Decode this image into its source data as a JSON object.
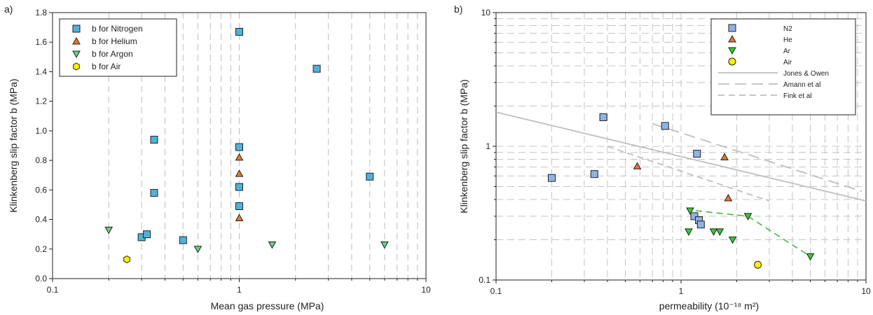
{
  "chart_data": [
    {
      "panel_label": "a)",
      "type": "scatter",
      "xlabel": "Mean gas pressure (MPa)",
      "ylabel": "Klinkenberg slip factor b (MPa)",
      "xscale": "log",
      "xlim": [
        0.1,
        10
      ],
      "ylim": [
        0,
        1.8
      ],
      "xticks": [
        "0.1",
        "1",
        "10"
      ],
      "yticks": [
        "0.0",
        "0.2",
        "0.4",
        "0.6",
        "0.8",
        "1.0",
        "1.2",
        "1.4",
        "1.6",
        "1.8"
      ],
      "grid": "vertical dashed",
      "legend_position": "top-left",
      "series": [
        {
          "name": "b for Nitrogen",
          "marker": "square",
          "color": "#4fb3d9",
          "points": [
            [
              0.3,
              0.28
            ],
            [
              0.32,
              0.3
            ],
            [
              0.35,
              0.58
            ],
            [
              0.35,
              0.94
            ],
            [
              0.5,
              0.26
            ],
            [
              1.0,
              1.67
            ],
            [
              1.0,
              0.89
            ],
            [
              1.0,
              0.62
            ],
            [
              1.0,
              0.49
            ],
            [
              2.6,
              1.42
            ],
            [
              5.0,
              0.69
            ]
          ]
        },
        {
          "name": "b for Helium",
          "marker": "triangle-up",
          "color": "#e8762c",
          "points": [
            [
              1.0,
              0.82
            ],
            [
              1.0,
              0.71
            ],
            [
              1.0,
              0.41
            ]
          ]
        },
        {
          "name": "b for Argon",
          "marker": "triangle-down",
          "color": "#66cc88",
          "points": [
            [
              0.2,
              0.33
            ],
            [
              0.6,
              0.2
            ],
            [
              1.5,
              0.23
            ],
            [
              6.0,
              0.23
            ]
          ]
        },
        {
          "name": "b for Air",
          "marker": "hexagon",
          "color": "#ffee00",
          "points": [
            [
              0.25,
              0.13
            ]
          ]
        }
      ]
    },
    {
      "panel_label": "b)",
      "type": "scatter",
      "xlabel": "permeability (10⁻¹⁸ m²)",
      "ylabel": "Klinkenberg slip factor b (MPa)",
      "xscale": "log",
      "yscale": "log",
      "xlim": [
        0.1,
        10
      ],
      "ylim": [
        0.1,
        10
      ],
      "xticks": [
        "0.1",
        "1",
        "10"
      ],
      "yticks": [
        "0.1",
        "1",
        "10"
      ],
      "grid": "dashed both axes",
      "legend_position": "top-right",
      "series": [
        {
          "name": "N2",
          "marker": "square",
          "color": "#8fb4e3",
          "points": [
            [
              0.2,
              0.58
            ],
            [
              0.34,
              0.62
            ],
            [
              0.38,
              1.65
            ],
            [
              0.82,
              1.42
            ],
            [
              1.22,
              0.88
            ],
            [
              1.18,
              0.3
            ],
            [
              1.25,
              0.28
            ],
            [
              1.28,
              0.26
            ]
          ]
        },
        {
          "name": "He",
          "marker": "triangle-up",
          "color": "#e8762c",
          "points": [
            [
              0.58,
              0.71
            ],
            [
              1.72,
              0.83
            ],
            [
              1.8,
              0.41
            ]
          ]
        },
        {
          "name": "Ar",
          "marker": "triangle-down",
          "color": "#33cc33",
          "points": [
            [
              1.12,
              0.33
            ],
            [
              1.1,
              0.23
            ],
            [
              1.5,
              0.23
            ],
            [
              1.62,
              0.23
            ],
            [
              1.9,
              0.2
            ],
            [
              2.3,
              0.3
            ],
            [
              5.0,
              0.15
            ]
          ]
        },
        {
          "name": "Air",
          "marker": "circle",
          "color": "#ffee00",
          "points": [
            [
              2.6,
              0.13
            ]
          ]
        }
      ],
      "lines": [
        {
          "name": "Jones & Owen",
          "style": "solid",
          "color": "#bfbfbf",
          "points": [
            [
              0.1,
              1.8
            ],
            [
              10,
              0.39
            ]
          ]
        },
        {
          "name": "Amann et al",
          "style": "long-dash",
          "color": "#bfbfbf",
          "points": [
            [
              0.7,
              1.48
            ],
            [
              9.5,
              0.46
            ]
          ]
        },
        {
          "name": "Fink et al",
          "style": "dash",
          "color": "#bfbfbf",
          "points": [
            [
              0.4,
              1.0
            ],
            [
              3.0,
              0.39
            ]
          ]
        },
        {
          "name": "",
          "style": "dash",
          "color": "#44bb44",
          "points": [
            [
              1.2,
              0.33
            ],
            [
              2.3,
              0.3
            ],
            [
              5.0,
              0.15
            ]
          ]
        }
      ]
    }
  ]
}
